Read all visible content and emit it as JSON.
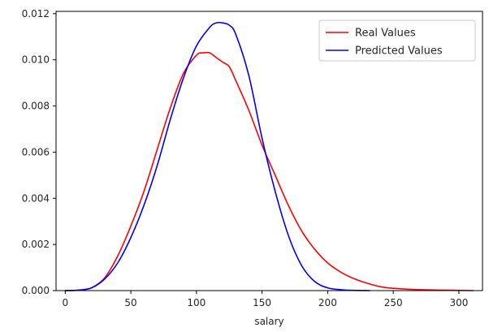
{
  "chart_data": {
    "type": "line",
    "xlabel": "salary",
    "ylabel": "",
    "xlim": [
      -7,
      318
    ],
    "ylim": [
      0,
      0.0121
    ],
    "xticks": [
      0,
      50,
      100,
      150,
      200,
      250,
      300
    ],
    "yticks": [
      0.0,
      0.002,
      0.004,
      0.006,
      0.008,
      0.01,
      0.012
    ],
    "ytick_labels": [
      "0.000",
      "0.002",
      "0.004",
      "0.006",
      "0.008",
      "0.010",
      "0.012"
    ],
    "grid": false,
    "legend_position": "top-right",
    "series": [
      {
        "name": "Real Values",
        "color": "#ff0000",
        "x": [
          0,
          10,
          20,
          30,
          40,
          50,
          60,
          70,
          80,
          90,
          100,
          105,
          110,
          115,
          120,
          125,
          130,
          140,
          150,
          160,
          170,
          180,
          190,
          200,
          210,
          220,
          230,
          240,
          250,
          270,
          290,
          311
        ],
        "y": [
          0.0,
          2e-05,
          0.00012,
          0.00055,
          0.0015,
          0.0028,
          0.0043,
          0.0061,
          0.0079,
          0.0094,
          0.0102,
          0.0103,
          0.0103,
          0.0101,
          0.0099,
          0.0097,
          0.0091,
          0.0078,
          0.0063,
          0.005,
          0.0037,
          0.0026,
          0.0018,
          0.0012,
          0.0008,
          0.00052,
          0.00032,
          0.00017,
          0.0001,
          4e-05,
          2e-05,
          0.0
        ]
      },
      {
        "name": "Predicted Values",
        "color": "#0000ff",
        "x": [
          0,
          10,
          20,
          30,
          40,
          50,
          60,
          70,
          80,
          90,
          100,
          110,
          115,
          120,
          125,
          130,
          140,
          150,
          160,
          170,
          180,
          190,
          200,
          210,
          220,
          232
        ],
        "y": [
          0.0,
          2e-05,
          0.00012,
          0.0005,
          0.0012,
          0.0023,
          0.0037,
          0.0054,
          0.0074,
          0.0092,
          0.0106,
          0.0114,
          0.0116,
          0.0116,
          0.0115,
          0.0111,
          0.0093,
          0.0066,
          0.0043,
          0.0024,
          0.0011,
          0.0004,
          0.00012,
          4e-05,
          1e-05,
          0.0
        ]
      }
    ]
  }
}
